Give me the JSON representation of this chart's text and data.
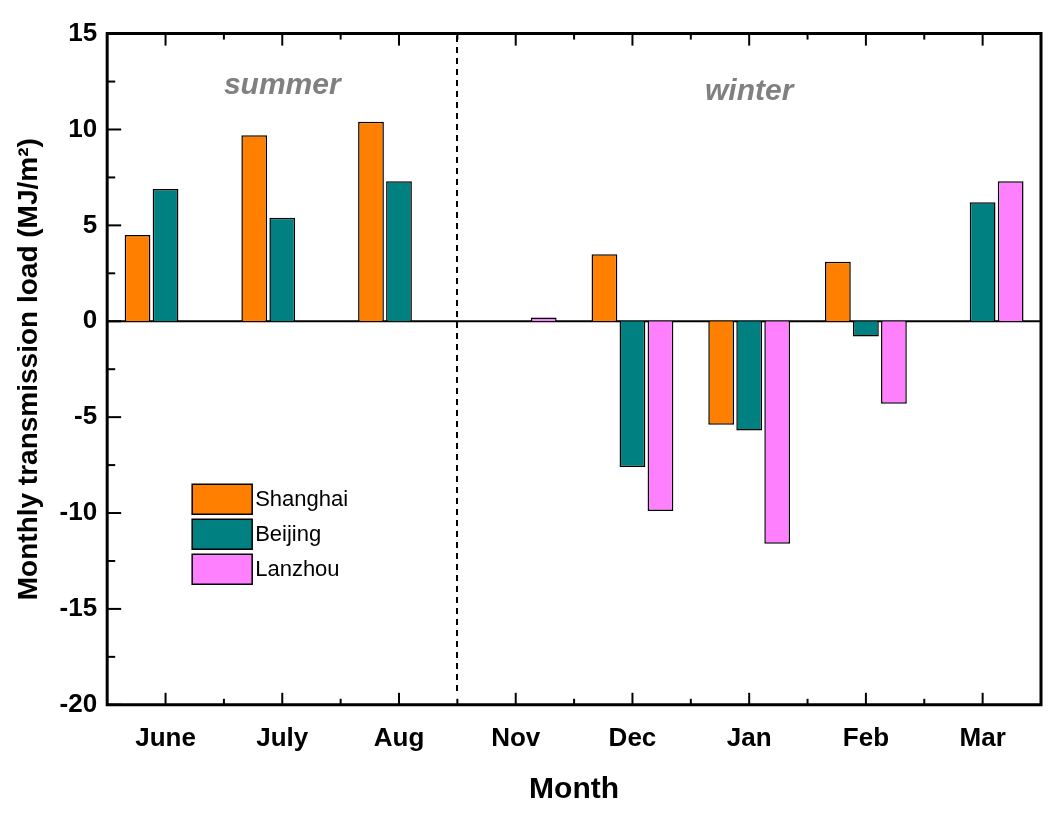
{
  "chart_data": {
    "type": "bar",
    "xlabel": "Month",
    "ylabel": "Monthly transmission load (MJ/m²)",
    "categories": [
      "June",
      "July",
      "Aug",
      "Nov",
      "Dec",
      "Jan",
      "Feb",
      "Mar"
    ],
    "series": [
      {
        "name": "Shanghai",
        "color": "#ff8000",
        "values": [
          4.5,
          9.7,
          10.4,
          null,
          3.5,
          -5.4,
          3.1,
          null
        ]
      },
      {
        "name": "Beijing",
        "color": "#008080",
        "values": [
          6.9,
          5.4,
          7.3,
          null,
          -7.6,
          -5.7,
          -0.8,
          6.2
        ]
      },
      {
        "name": "Lanzhou",
        "color": "#ff80ff",
        "values": [
          null,
          null,
          null,
          0.2,
          -9.9,
          -11.6,
          -4.3,
          7.3
        ]
      }
    ],
    "ylim": [
      -20,
      15
    ],
    "yticks": [
      -20,
      {
        "value": -17.5,
        "label": null
      },
      -15,
      {
        "value": -12.5,
        "label": null
      },
      -10,
      {
        "value": -7.5,
        "label": null
      },
      -5,
      {
        "value": -2.5,
        "label": null
      },
      0,
      {
        "value": 2.5,
        "label": null
      },
      5,
      {
        "value": 7.5,
        "label": null
      },
      10,
      {
        "value": 12.5,
        "label": null
      },
      15
    ],
    "annotations": [
      "summer",
      "winter"
    ],
    "legend": "left"
  }
}
